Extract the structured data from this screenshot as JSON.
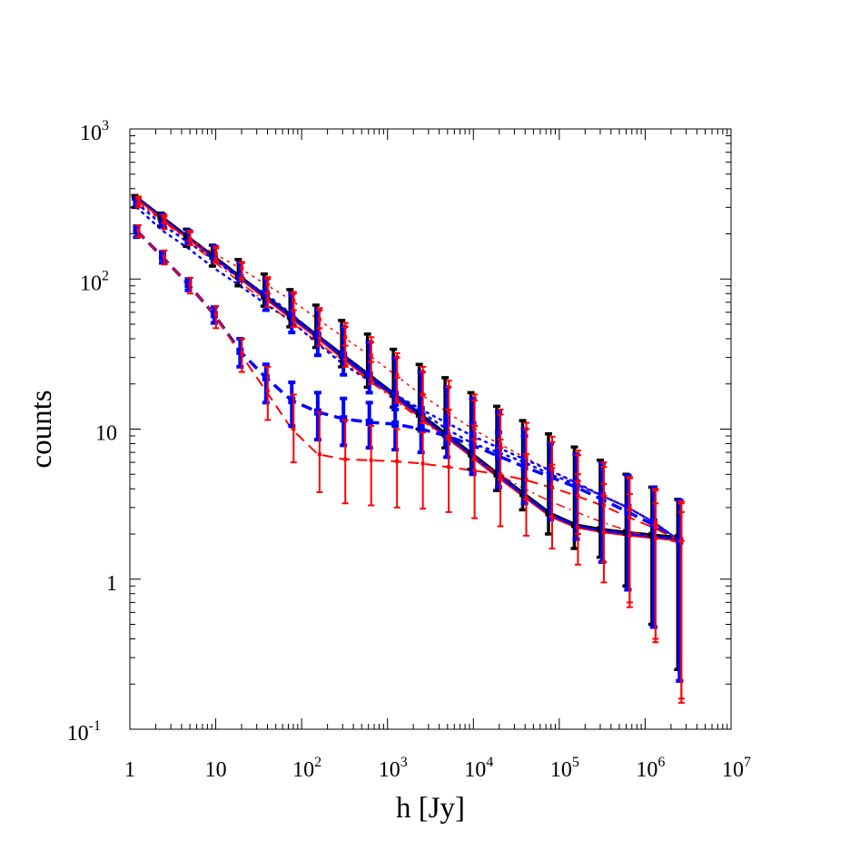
{
  "chart_data": {
    "type": "line",
    "title": "",
    "xlabel": "h [Jy]",
    "ylabel": "counts",
    "xscale": "log",
    "yscale": "log",
    "xlim": [
      1,
      10000000
    ],
    "ylim": [
      0.1,
      1000
    ],
    "grid": false,
    "legend": "none",
    "x_tick_labels": [
      {
        "value": 1,
        "base": "1",
        "exp": ""
      },
      {
        "value": 10,
        "base": "10",
        "exp": ""
      },
      {
        "value": 100,
        "base": "10",
        "exp": "2"
      },
      {
        "value": 1000,
        "base": "10",
        "exp": "3"
      },
      {
        "value": 10000,
        "base": "10",
        "exp": "4"
      },
      {
        "value": 100000,
        "base": "10",
        "exp": "5"
      },
      {
        "value": 1000000,
        "base": "10",
        "exp": "6"
      },
      {
        "value": 10000000,
        "base": "10",
        "exp": "7"
      }
    ],
    "y_tick_labels": [
      {
        "value": 0.1,
        "base": "10",
        "exp": "-1"
      },
      {
        "value": 1,
        "base": "1",
        "exp": ""
      },
      {
        "value": 10,
        "base": "10",
        "exp": ""
      },
      {
        "value": 100,
        "base": "10",
        "exp": "2"
      },
      {
        "value": 1000,
        "base": "10",
        "exp": "3"
      }
    ],
    "x": [
      1.2,
      2.4,
      4.8,
      9.6,
      19.2,
      38.4,
      76.8,
      154,
      307,
      614,
      1229,
      2458,
      4915,
      9830,
      19661,
      39322,
      78643,
      157286,
      314573,
      629146,
      1258291,
      2516582
    ],
    "series": [
      {
        "color": "#000000",
        "dash": "solid",
        "width": 3,
        "values": [
          350,
          258,
          190,
          141,
          104,
          77,
          57,
          42,
          31,
          23,
          17,
          12.5,
          9.2,
          6.8,
          5.0,
          3.7,
          2.75,
          2.3,
          2.15,
          2.05,
          1.97,
          1.9
        ]
      },
      {
        "color": "#0000ff",
        "dash": "solid",
        "width": 3,
        "values": [
          346,
          254,
          187,
          138,
          102,
          75,
          55,
          41,
          30,
          22,
          16.5,
          12.1,
          8.9,
          6.6,
          4.9,
          3.6,
          2.7,
          2.25,
          2.1,
          2.0,
          1.92,
          1.85
        ]
      },
      {
        "color": "#ff0000",
        "dash": "solid",
        "width": 1.5,
        "values": [
          342,
          250,
          184,
          136,
          100,
          73,
          54,
          40,
          29,
          21.5,
          16,
          11.8,
          8.7,
          6.4,
          4.7,
          3.5,
          2.6,
          2.2,
          2.05,
          1.95,
          1.87,
          1.8
        ]
      },
      {
        "color": "#0000ff",
        "dash": "dot",
        "width": 2.5,
        "values": [
          320,
          230,
          175,
          135,
          100,
          80,
          58,
          42,
          31,
          23,
          17,
          13,
          10,
          8,
          7,
          6,
          5,
          4.3,
          3.6,
          3.0,
          2.4,
          1.8
        ]
      },
      {
        "color": "#ff0000",
        "dash": "dot",
        "width": 1.5,
        "values": [
          330,
          240,
          185,
          148,
          118,
          92,
          72,
          54,
          41,
          31,
          23,
          17,
          13,
          10,
          8,
          6.5,
          5.3,
          4.4,
          3.6,
          3.0,
          2.4,
          1.8
        ]
      },
      {
        "color": "#0000ff",
        "dash": "dot",
        "width": 2.5,
        "values": [
          300,
          210,
          160,
          118,
          90,
          68,
          52,
          37,
          27,
          21,
          17,
          13.5,
          11,
          9,
          7.5,
          6.3,
          5.3,
          4.4,
          3.6,
          3.0,
          2.4,
          1.8
        ]
      },
      {
        "color": "#ff0000",
        "dash": "dashdot",
        "width": 1.5,
        "values": [
          338,
          245,
          178,
          130,
          95,
          70,
          51,
          38,
          28,
          21,
          15.5,
          11.5,
          8.6,
          6.5,
          5.0,
          4.0,
          3.3,
          2.8,
          2.4,
          2.1,
          1.9,
          1.75
        ]
      },
      {
        "color": "#0000ff",
        "dash": "dash",
        "width": 3.5,
        "values": [
          210,
          140,
          92,
          58,
          33,
          22,
          15.5,
          13,
          11.7,
          11.1,
          10.8,
          10,
          9.0,
          7.8,
          6.6,
          5.6,
          4.8,
          4.1,
          3.4,
          2.8,
          2.3,
          1.8
        ]
      },
      {
        "color": "#ff0000",
        "dash": "dash",
        "width": 2,
        "values": [
          210,
          140,
          92,
          58,
          32,
          18,
          10,
          6.8,
          6.3,
          6.2,
          6.1,
          5.9,
          5.6,
          5.3,
          5.0,
          4.6,
          4.1,
          3.6,
          3.1,
          2.6,
          2.2,
          1.8
        ]
      }
    ],
    "error_bars": [
      {
        "color": "#000000",
        "width": 3.5,
        "cap": 8,
        "offset": -2,
        "center": [
          350,
          258,
          190,
          141,
          104,
          77,
          57,
          42,
          31,
          23,
          17,
          12.5,
          9.2,
          6.8,
          5.0,
          3.7,
          2.75,
          2.3,
          2.15,
          2.05,
          1.97,
          1.9
        ],
        "low": [
          300,
          225,
          165,
          122,
          90,
          66,
          48,
          35,
          26,
          19,
          14,
          10,
          7.5,
          5.4,
          3.9,
          2.9,
          2.0,
          1.6,
          1.4,
          0.9,
          0.5,
          0.25
        ],
        "high": [
          360,
          275,
          215,
          168,
          135,
          108,
          85,
          67,
          53,
          43,
          34,
          27,
          22,
          17.5,
          14.2,
          11.4,
          9.3,
          7.6,
          6.2,
          5.0,
          4.1,
          3.4
        ]
      },
      {
        "color": "#0000ff",
        "width": 4,
        "cap": 8,
        "offset": 0,
        "center": [
          320,
          230,
          175,
          135,
          100,
          80,
          58,
          42,
          31,
          23,
          17,
          13.5,
          11,
          9,
          7.5,
          6.3,
          5.3,
          4.4,
          3.6,
          3.0,
          2.4,
          1.8
        ],
        "low": [
          305,
          230,
          180,
          140,
          105,
          62,
          44,
          31,
          23,
          17.5,
          13.5,
          10.5,
          8.0,
          5.2,
          4.1,
          3.2,
          2.5,
          1.85,
          1.3,
          0.85,
          0.48,
          0.21
        ],
        "high": [
          345,
          270,
          210,
          165,
          128,
          100,
          80,
          62,
          48,
          38,
          30,
          24,
          19,
          16,
          13,
          10,
          8.0,
          6.8,
          5.9,
          4.9,
          4.1,
          3.35
        ]
      },
      {
        "color": "#0000ff",
        "width": 4,
        "cap": 8,
        "offset": 0,
        "center": [
          210,
          140,
          92,
          58,
          33,
          22,
          15.5,
          13,
          11.7,
          11.1,
          10.8,
          10,
          9.0,
          7.8,
          6.6,
          5.6,
          4.8,
          4.1,
          3.4,
          2.8,
          2.3,
          1.8
        ],
        "low": [
          190,
          128,
          84,
          51,
          26,
          15,
          10.5,
          8.5,
          7.8,
          7.5,
          7.3,
          7.0,
          6.5,
          5.0,
          4.1,
          3.2,
          2.5,
          1.85,
          1.3,
          0.85,
          0.48,
          0.21
        ],
        "high": [
          225,
          152,
          100,
          65,
          40,
          27,
          20.5,
          17.5,
          16,
          15,
          14.5,
          13.5,
          12,
          11,
          9.5,
          9.0,
          8.0,
          6.8,
          5.9,
          4.9,
          4.1,
          3.35
        ]
      },
      {
        "color": "#ff0000",
        "width": 2,
        "cap": 7,
        "offset": 2,
        "center": [
          342,
          250,
          184,
          136,
          100,
          73,
          54,
          40,
          29,
          21.5,
          16,
          11.8,
          8.7,
          6.4,
          4.7,
          3.5,
          2.6,
          2.2,
          2.05,
          1.95,
          1.87,
          1.8
        ],
        "low": [
          315,
          235,
          178,
          132,
          98,
          65,
          48,
          36,
          26,
          20,
          15,
          11,
          8.5,
          6.2,
          4.6,
          3.4,
          2.6,
          2.0,
          1.3,
          0.7,
          0.4,
          0.16
        ],
        "high": [
          355,
          268,
          210,
          165,
          130,
          103,
          82,
          64,
          51,
          41,
          32,
          26,
          21,
          17,
          13.5,
          11,
          8.9,
          7.2,
          6.0,
          4.8,
          4.0,
          3.3
        ]
      },
      {
        "color": "#ff0000",
        "width": 2,
        "cap": 7,
        "offset": 2,
        "center": [
          330,
          240,
          185,
          148,
          118,
          92,
          72,
          54,
          41,
          31,
          23,
          17,
          13,
          10,
          8,
          6.5,
          5.3,
          4.4,
          3.6,
          3.0,
          2.4,
          1.8
        ],
        "low": [
          300,
          215,
          168,
          128,
          102,
          80,
          62,
          47,
          36,
          28,
          22,
          17,
          13.5,
          10.5,
          8.5,
          6.8,
          5.5,
          4.5,
          3.6,
          2.9,
          2.3,
          1.8
        ],
        "high": [
          345,
          260,
          205,
          160,
          128,
          100,
          80,
          62,
          48,
          38,
          30,
          24,
          19,
          15.5,
          12.5,
          10,
          8.2,
          6.7,
          5.6,
          4.7,
          3.9,
          3.2
        ]
      },
      {
        "color": "#ff0000",
        "width": 2,
        "cap": 7,
        "offset": 2,
        "center": [
          210,
          140,
          92,
          58,
          32,
          18,
          10,
          6.8,
          6.3,
          6.2,
          6.1,
          5.9,
          5.6,
          5.3,
          5.0,
          4.6,
          4.1,
          3.6,
          3.1,
          2.6,
          2.2,
          1.8
        ],
        "low": [
          190,
          125,
          80,
          47,
          24,
          11.5,
          6.0,
          3.8,
          3.2,
          3.1,
          3.0,
          2.95,
          2.8,
          2.55,
          2.25,
          1.95,
          1.6,
          1.25,
          0.95,
          0.65,
          0.38,
          0.15
        ],
        "high": [
          228,
          155,
          102,
          66,
          40,
          26,
          17,
          13,
          11.5,
          10.5,
          10,
          9.5,
          9.0,
          8.5,
          7.5,
          6.8,
          5.8,
          5.0,
          4.3,
          3.7,
          3.2,
          2.8
        ]
      }
    ]
  }
}
